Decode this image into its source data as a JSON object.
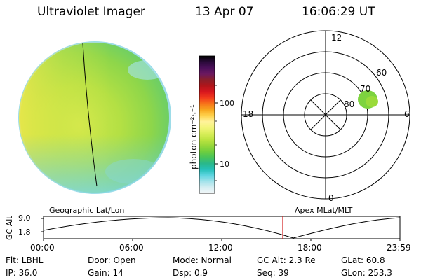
{
  "header": {
    "instrument": "Ultraviolet Imager",
    "date": "13 Apr 07",
    "time": "16:06:29 UT"
  },
  "colorbar": {
    "label": "photon cm⁻²s⁻¹",
    "ticks": [
      "100",
      "10"
    ],
    "colors": [
      "#000000",
      "#2a0a3a",
      "#4b0f5a",
      "#6b1860",
      "#8a1f2a",
      "#b0151a",
      "#d8161e",
      "#f23a1c",
      "#f7741a",
      "#f7a61e",
      "#ffd24c",
      "#fff39a",
      "#f3f57a",
      "#d9ee5a",
      "#bde441",
      "#98d83a",
      "#70ce3e",
      "#48c45a",
      "#2ab88a",
      "#25c0b8",
      "#5ed5e0",
      "#a2e2ea",
      "#d5eef2",
      "#f2f6f8"
    ]
  },
  "polar": {
    "labels": {
      "top": "12",
      "bottom": "0",
      "left": "18",
      "right": "6",
      "lat60": "60",
      "lat70": "70",
      "lat80": "80"
    }
  },
  "timeline": {
    "left_title": "Geographic Lat/Lon",
    "right_title": "Apex MLat/MLT",
    "yaxis_label": "GC Alt",
    "y_ticks": [
      "9.0",
      "1.8"
    ],
    "x_ticks": [
      "00:00",
      "06:00",
      "12:00",
      "18:00",
      "23:59"
    ],
    "current_marker_color": "#d21d1d"
  },
  "info": {
    "flt": "Flt: LBHL",
    "door": "Door: Open",
    "mode": "Mode: Normal",
    "gcalt": "GC Alt: 2.3 Re",
    "glat": "GLat:  60.8",
    "ip": "IP: 36.0",
    "gain": "Gain: 14",
    "dsp": "Dsp:     0.9",
    "seq": "Seq: 39",
    "glon": "GLon: 253.3"
  }
}
